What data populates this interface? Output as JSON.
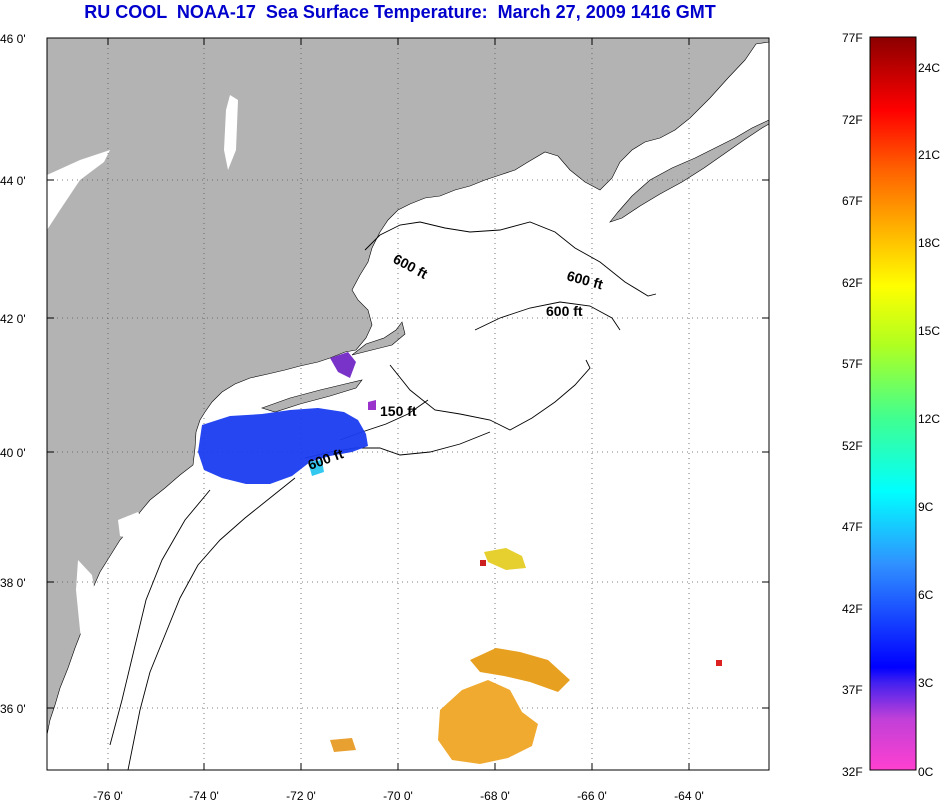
{
  "title": "RU COOL  NOAA-17  Sea Surface Temperature:  March 27, 2009 1416 GMT",
  "map": {
    "lat_labels": [
      "46 0'",
      "44 0'",
      "42 0'",
      "40 0'",
      "38 0'",
      "36 0'"
    ],
    "lon_labels": [
      "-76 0'",
      "-74 0'",
      "-72 0'",
      "-70 0'",
      "-68 0'",
      "-66 0'",
      "-64 0'"
    ],
    "contour_labels": [
      "600 ft",
      "600 ft",
      "600 ft",
      "150 ft",
      "600 ft"
    ],
    "colors": {
      "land": "#b3b3b3",
      "ocean": "#ffffff",
      "cold_water": "#1a3cf0",
      "warm_water": "#f0a020"
    }
  },
  "colorbar": {
    "fahrenheit_labels": [
      "77F",
      "72F",
      "67F",
      "62F",
      "57F",
      "52F",
      "47F",
      "42F",
      "37F",
      "32F"
    ],
    "celsius_labels": [
      "24C",
      "21C",
      "18C",
      "15C",
      "12C",
      "9C",
      "6C",
      "3C",
      "0C"
    ]
  }
}
